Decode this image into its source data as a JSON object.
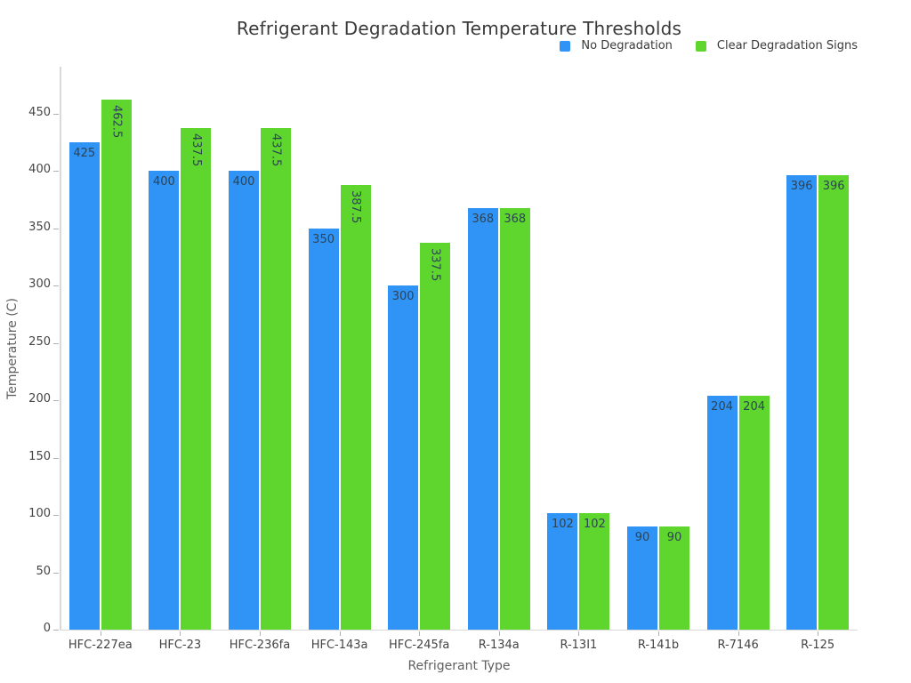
{
  "chart_data": {
    "type": "bar",
    "title": "Refrigerant Degradation Temperature Thresholds",
    "xlabel": "Refrigerant Type",
    "ylabel": "Temperature (C)",
    "categories": [
      "HFC-227ea",
      "HFC-23",
      "HFC-236fa",
      "HFC-143a",
      "HFC-245fa",
      "R-134a",
      "R-13I1",
      "R-141b",
      "R-7146",
      "R-125"
    ],
    "series": [
      {
        "name": "No Degradation",
        "color": "#2F94F5",
        "values": [
          425,
          400,
          400,
          350,
          300,
          368,
          102,
          90,
          204,
          396
        ]
      },
      {
        "name": "Clear Degradation Signs",
        "color": "#5ED62E",
        "values": [
          462.5,
          437.5,
          437.5,
          387.5,
          337.5,
          368,
          102,
          90,
          204,
          396
        ]
      }
    ],
    "yticks": [
      0,
      50,
      100,
      150,
      200,
      250,
      300,
      350,
      400,
      450
    ],
    "ylim": [
      0,
      491
    ],
    "grid": false,
    "legend_position": "top-right",
    "bar_value_labels": "inside-top",
    "label_color": "#2e4355",
    "axis_line_color": "#d9d9d9",
    "tick_mark_color": "#b0b0b0",
    "tick_text_color": "#444444"
  }
}
